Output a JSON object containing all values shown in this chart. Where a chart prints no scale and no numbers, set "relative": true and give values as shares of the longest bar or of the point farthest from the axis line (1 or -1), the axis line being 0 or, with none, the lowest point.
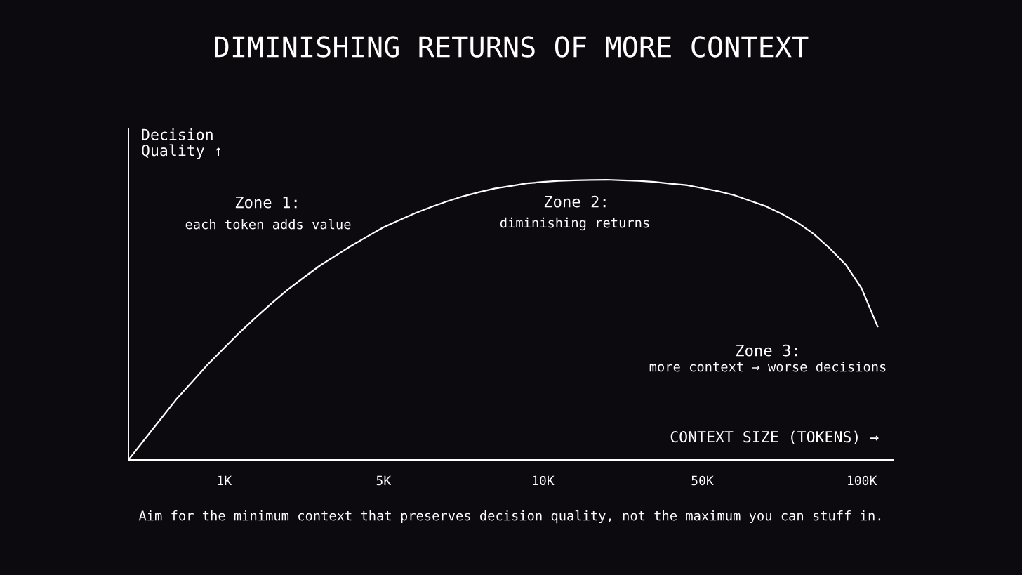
{
  "chart_data": {
    "type": "line",
    "title": "DIMINISHING RETURNS OF MORE CONTEXT",
    "xlabel": "CONTEXT SIZE (TOKENS) →",
    "ylabel": "Decision\nQuality ↑",
    "relative": true,
    "categories": [
      null,
      null,
      null,
      null,
      null,
      null,
      "1K",
      null,
      null,
      null,
      null,
      null,
      null,
      null,
      null,
      null,
      "5K",
      null,
      null,
      null,
      null,
      null,
      null,
      null,
      null,
      null,
      "10K",
      null,
      null,
      null,
      null,
      null,
      null,
      null,
      null,
      null,
      "50K",
      null,
      null,
      null,
      null,
      null,
      null,
      null,
      null,
      null,
      "100K",
      null
    ],
    "series": [
      {
        "color": "#ffffff",
        "values": [
          0,
          0.072,
          0.144,
          0.216,
          0.279,
          0.342,
          0.399,
          0.456,
          0.509,
          0.56,
          0.608,
          0.651,
          0.693,
          0.729,
          0.765,
          0.798,
          0.83,
          0.856,
          0.881,
          0.903,
          0.923,
          0.941,
          0.956,
          0.969,
          0.978,
          0.987,
          0.992,
          0.996,
          0.998,
          0.999,
          1.0,
          0.998,
          0.996,
          0.992,
          0.986,
          0.981,
          0.97,
          0.959,
          0.945,
          0.925,
          0.905,
          0.878,
          0.846,
          0.806,
          0.755,
          0.697,
          0.612,
          0.476
        ]
      }
    ],
    "annotations": [
      "Zone 1:",
      "each token adds value",
      "Zone 2:",
      "diminishing returns",
      "Zone 3:",
      "more context → worse decisions",
      "Aim for the minimum context that preserves decision quality, not the maximum you can stuff in."
    ],
    "grid": false,
    "legend": false,
    "marker": "none",
    "line_style": "solid"
  }
}
